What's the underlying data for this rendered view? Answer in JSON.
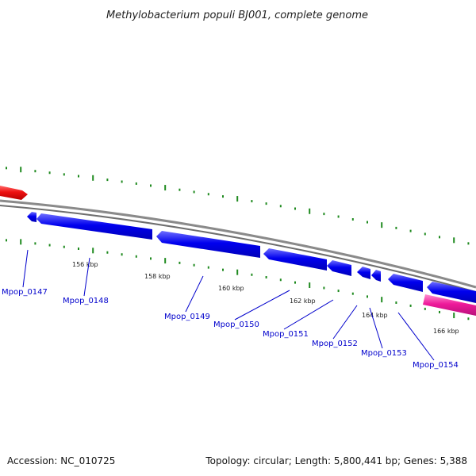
{
  "title": "Methylobacterium populi BJ001, complete genome",
  "footer": {
    "accession": "Accession: NC_010725",
    "summary": "Topology: circular; Length: 5,800,441 bp; Genes: 5,388"
  },
  "colors": {
    "forward_gene": "#0000ee",
    "forward_gene_highlight": "#6f6fff",
    "reverse_gene": "#ee1111",
    "rna_gene": "#ee1a9a",
    "backbone": "#7a7a7a",
    "ticks": "#1f8a1f",
    "labels": "#0000cc"
  },
  "scale_labels": [
    "156 kbp",
    "158 kbp",
    "160 kbp",
    "162 kbp",
    "164 kbp",
    "166 kbp"
  ],
  "genes": [
    {
      "label": "Mpop_0147"
    },
    {
      "label": "Mpop_0148"
    },
    {
      "label": "Mpop_0149"
    },
    {
      "label": "Mpop_0150"
    },
    {
      "label": "Mpop_0151"
    },
    {
      "label": "Mpop_0152"
    },
    {
      "label": "Mpop_0153"
    },
    {
      "label": "Mpop_0154"
    }
  ]
}
